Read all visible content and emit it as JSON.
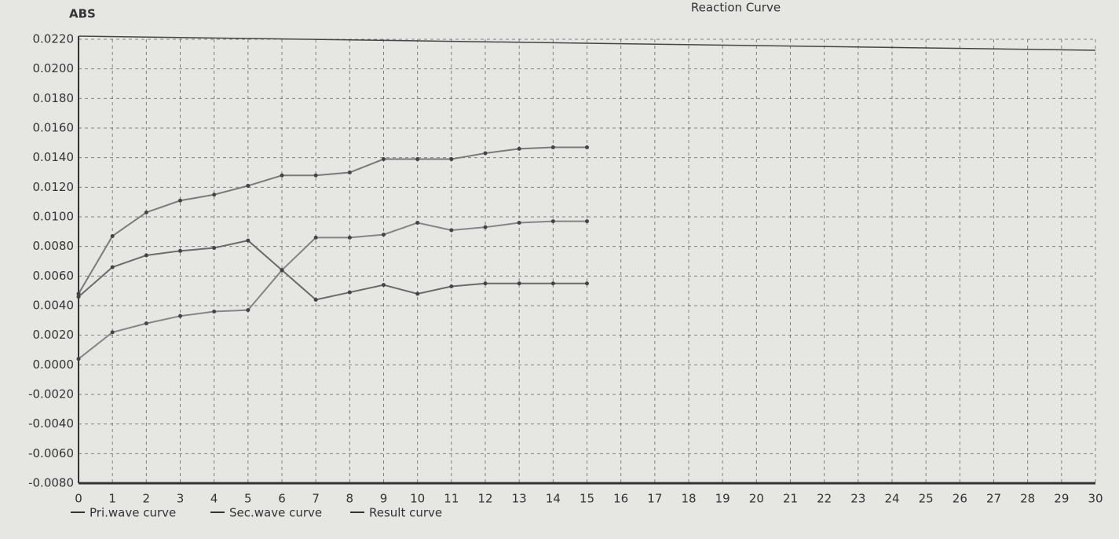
{
  "chart_data": {
    "type": "line",
    "title": "Reaction Curve",
    "y_label": "ABS",
    "x": [
      0,
      1,
      2,
      3,
      4,
      5,
      6,
      7,
      8,
      9,
      10,
      11,
      12,
      13,
      14,
      15
    ],
    "series": [
      {
        "name": "Pri.wave curve",
        "color": "#7a7a7a",
        "values": [
          0.0048,
          0.0087,
          0.0103,
          0.0111,
          0.0115,
          0.0121,
          0.0128,
          0.0128,
          0.013,
          0.0139,
          0.0139,
          0.0139,
          0.0143,
          0.0146,
          0.0147,
          0.0147
        ]
      },
      {
        "name": "Sec.wave curve",
        "color": "#6a6a6a",
        "values": [
          0.0046,
          0.0066,
          0.0074,
          0.0077,
          0.0079,
          0.0084,
          0.0064,
          0.0044,
          0.0049,
          0.0054,
          0.0048,
          0.0053,
          0.0055,
          0.0055,
          0.0055,
          0.0055
        ]
      },
      {
        "name": "Result curve",
        "color": "#858585",
        "values": [
          0.0004,
          0.0022,
          0.0028,
          0.0033,
          0.0036,
          0.0037,
          0.0064,
          0.0086,
          0.0086,
          0.0088,
          0.0096,
          0.0091,
          0.0093,
          0.0096,
          0.0097,
          0.0097
        ]
      }
    ],
    "xlim": [
      0,
      30
    ],
    "xticks": [
      0,
      1,
      2,
      3,
      4,
      5,
      6,
      7,
      8,
      9,
      10,
      11,
      12,
      13,
      14,
      15,
      16,
      17,
      18,
      19,
      20,
      21,
      22,
      23,
      24,
      25,
      26,
      27,
      28,
      29,
      30
    ],
    "ylim": [
      -0.008,
      0.022
    ],
    "yticks": [
      {
        "value": 0.022,
        "label": "0.0220"
      },
      {
        "value": 0.02,
        "label": "0.0200"
      },
      {
        "value": 0.018,
        "label": "0.0180"
      },
      {
        "value": 0.016,
        "label": "0.0160"
      },
      {
        "value": 0.014,
        "label": "0.0140"
      },
      {
        "value": 0.012,
        "label": "0.0120"
      },
      {
        "value": 0.01,
        "label": "0.0100"
      },
      {
        "value": 0.008,
        "label": "0.0080"
      },
      {
        "value": 0.006,
        "label": "0.0060"
      },
      {
        "value": 0.004,
        "label": "0.0040"
      },
      {
        "value": 0.002,
        "label": "0.0020"
      },
      {
        "value": 0,
        "label": "0.0000"
      },
      {
        "value": -0.002,
        "label": "-0.0020"
      },
      {
        "value": -0.004,
        "label": "-0.0040"
      },
      {
        "value": -0.006,
        "label": "-0.0060"
      },
      {
        "value": -0.008,
        "label": "-0.0080"
      }
    ],
    "grid": true
  }
}
